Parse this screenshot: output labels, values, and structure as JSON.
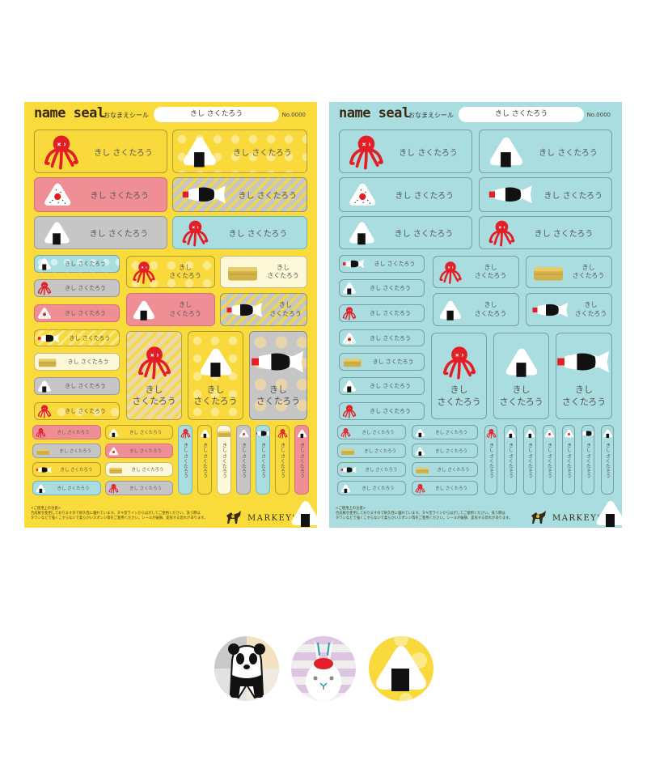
{
  "sheets": [
    {
      "theme": "yellow",
      "logo": "name seal",
      "subtitle": "おなまえシール",
      "name_field": "きし さくたろう",
      "number": "No.0000"
    },
    {
      "theme": "blue",
      "logo": "name seal",
      "subtitle": "おなまえシール",
      "name_field": "きし さくたろう",
      "number": "No.0000"
    }
  ],
  "sticker_name": "きし さくたろう",
  "sticker_name_line1": "きし",
  "sticker_name_line2": "さくたろう",
  "notice": {
    "title": "<ご使用上の注意>",
    "line1": "合成紙を使用しておりますので耐久性に優れています。ヌキ型ラインからはがしてご使用ください。洗う際は",
    "line2": "タワシなどで強くこすらないで柔らかいスポンジ等をご使用ください。シールが破損、変形する恐れがあります。"
  },
  "brand": "MARKEY'S",
  "icons": [
    "octopus-icon",
    "onigiri-icon",
    "soy-fish-icon",
    "cake-icon",
    "panda-icon",
    "rabbit-icon"
  ],
  "colors": {
    "yellow": "#fadb3c",
    "pink": "#ef8f95",
    "gray": "#c4c4c4",
    "blue": "#a9dde0",
    "cream": "#fdf8d7",
    "red": "#e41e26"
  },
  "samples": [
    "panda-icon",
    "rabbit-icon",
    "onigiri-icon"
  ]
}
